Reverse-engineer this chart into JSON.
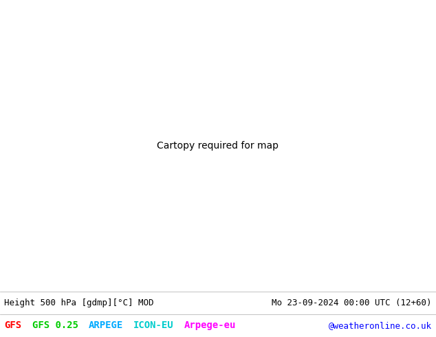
{
  "title_left": "Height 500 hPa [gdmp][°C] MOD",
  "title_right": "Mo 23-09-2024 00:00 UTC (12+60)",
  "legend_items": [
    {
      "label": "GFS",
      "color": "#ff0000"
    },
    {
      "label": "GFS 0.25",
      "color": "#00cc00"
    },
    {
      "label": "ARPEGE",
      "color": "#00aaff"
    },
    {
      "label": "ICON-EU",
      "color": "#00cccc"
    },
    {
      "label": "Arpege-eu",
      "color": "#ff00ff"
    }
  ],
  "credit": "@weatheronline.co.uk",
  "credit_color": "#0000ff",
  "land_color": "#b5efb5",
  "ocean_color": "#e8e8e8",
  "figsize": [
    6.34,
    4.9
  ],
  "dpi": 100,
  "font_size_title": 9,
  "font_size_legend": 10,
  "font_size_credit": 9
}
